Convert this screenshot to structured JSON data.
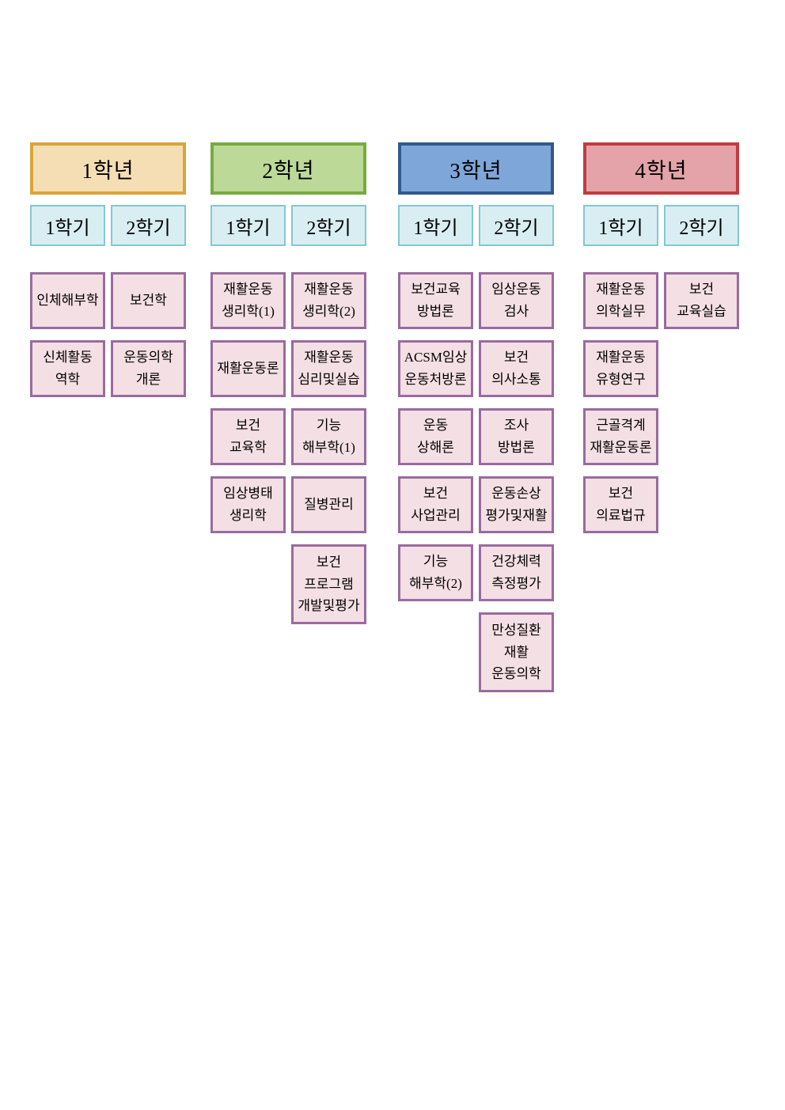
{
  "page": {
    "background": "#ffffff"
  },
  "board": {
    "semester_style": {
      "fill": "#d9eef2",
      "border": "#82c8d2"
    },
    "course_style": {
      "fill": "#f4dfe4",
      "border": "#996b9f"
    },
    "columns": [
      {
        "year_label": "1학년",
        "header": {
          "fill": "#f5deb3",
          "border": "#d9a43b"
        },
        "semesters": [
          "1학기",
          "2학기"
        ],
        "rows": [
          [
            [
              "인체해부학"
            ],
            [
              "보건학"
            ]
          ],
          [
            [
              "신체활동",
              "역학"
            ],
            [
              "운동의학",
              "개론"
            ]
          ]
        ]
      },
      {
        "year_label": "2학년",
        "header": {
          "fill": "#bcd998",
          "border": "#77ab41"
        },
        "semesters": [
          "1학기",
          "2학기"
        ],
        "rows": [
          [
            [
              "재활운동",
              "생리학(1)"
            ],
            [
              "재활운동",
              "생리학(2)"
            ]
          ],
          [
            [
              "재활운동론"
            ],
            [
              "재활운동",
              "심리및실습"
            ]
          ],
          [
            [
              "보건",
              "교육학"
            ],
            [
              "기능",
              "해부학(1)"
            ]
          ],
          [
            [
              "임상병태",
              "생리학"
            ],
            [
              "질병관리"
            ]
          ],
          [
            null,
            [
              "보건",
              "프로그램",
              "개발및평가"
            ]
          ]
        ]
      },
      {
        "year_label": "3학년",
        "header": {
          "fill": "#7ea6d8",
          "border": "#31598c"
        },
        "semesters": [
          "1학기",
          "2학기"
        ],
        "rows": [
          [
            [
              "보건교육",
              "방법론"
            ],
            [
              "임상운동",
              "검사"
            ]
          ],
          [
            [
              "ACSM임상",
              "운동처방론"
            ],
            [
              "보건",
              "의사소통"
            ]
          ],
          [
            [
              "운동",
              "상해론"
            ],
            [
              "조사",
              "방법론"
            ]
          ],
          [
            [
              "보건",
              "사업관리"
            ],
            [
              "운동손상",
              "평가및재활"
            ]
          ],
          [
            [
              "기능",
              "해부학(2)"
            ],
            [
              "건강체력",
              "측정평가"
            ]
          ],
          [
            null,
            [
              "만성질환",
              "재활",
              "운동의학"
            ]
          ]
        ]
      },
      {
        "year_label": "4학년",
        "header": {
          "fill": "#e3a3a8",
          "border": "#c03c40"
        },
        "semesters": [
          "1학기",
          "2학기"
        ],
        "rows": [
          [
            [
              "재활운동",
              "의학실무"
            ],
            [
              "보건",
              "교육실습"
            ]
          ],
          [
            [
              "재활운동",
              "유형연구"
            ],
            null
          ],
          [
            [
              "근골격계",
              "재활운동론"
            ],
            null
          ],
          [
            [
              "보건",
              "의료법규"
            ],
            null
          ]
        ]
      }
    ]
  }
}
